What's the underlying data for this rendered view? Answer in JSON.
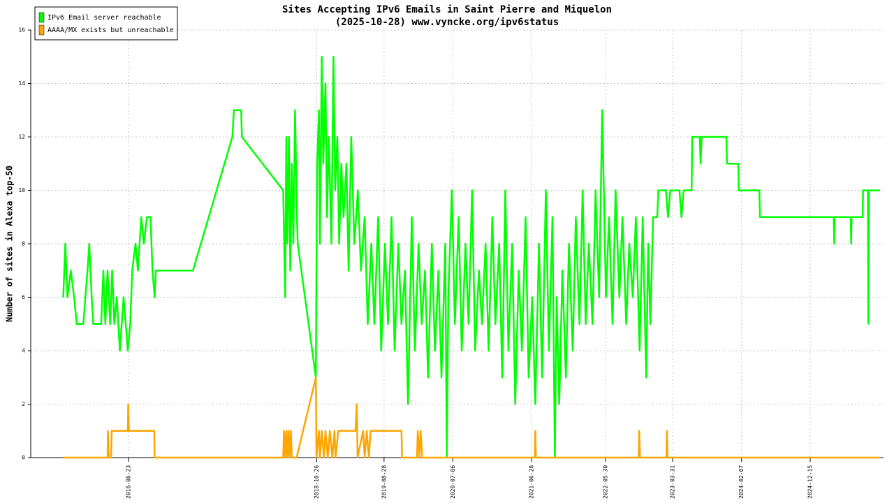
{
  "chart_data": {
    "type": "line",
    "title": "Sites Accepting IPv6 Emails in Saint Pierre and Miquelon",
    "subtitle": "(2025-10-28) www.vyncke.org/ipv6status",
    "y_label": "Number of sites in Alexa top-50",
    "xlim": [
      "2015-04-06",
      "2025-11-13"
    ],
    "xticks": [
      "2016-06-23",
      "2018-10-26",
      "2019-08-28",
      "2020-07-06",
      "2021-06-28",
      "2022-05-30",
      "2023-03-31",
      "2024-02-07",
      "2024-12-15"
    ],
    "ylim": [
      0,
      16
    ],
    "yticks": [
      0,
      2,
      4,
      6,
      8,
      10,
      12,
      14,
      16
    ],
    "grid": true,
    "legend": "top-left",
    "series": [
      {
        "name": "IPv6 Email server reachable",
        "color": "#00ff00",
        "x": [
          "2015-09-01",
          "2015-09-10",
          "2015-09-20",
          "2015-10-05",
          "2015-10-20",
          "2015-11-01",
          "2015-12-01",
          "2015-12-10",
          "2015-12-20",
          "2015-12-28",
          "2016-01-08",
          "2016-01-15",
          "2016-02-20",
          "2016-03-01",
          "2016-03-10",
          "2016-03-20",
          "2016-04-01",
          "2016-04-10",
          "2016-04-20",
          "2016-05-01",
          "2016-05-15",
          "2016-06-01",
          "2016-06-20",
          "2016-07-01",
          "2016-07-10",
          "2016-07-25",
          "2016-08-05",
          "2016-08-20",
          "2016-09-01",
          "2016-09-15",
          "2016-10-01",
          "2016-10-10",
          "2016-10-20",
          "2016-10-25",
          "2017-04-12",
          "2017-10-08",
          "2017-10-15",
          "2017-11-17",
          "2017-11-20",
          "2018-05-27",
          "2018-06-05",
          "2018-06-10",
          "2018-06-15",
          "2018-06-22",
          "2018-06-28",
          "2018-07-05",
          "2018-07-12",
          "2018-07-20",
          "2018-07-28",
          "2018-08-01",
          "2018-10-22",
          "2018-10-28",
          "2018-11-05",
          "2018-11-10",
          "2018-11-18",
          "2018-11-25",
          "2018-12-05",
          "2018-12-12",
          "2018-12-20",
          "2019-01-01",
          "2019-01-10",
          "2019-01-18",
          "2019-01-28",
          "2019-02-05",
          "2019-02-15",
          "2019-02-25",
          "2019-03-10",
          "2019-03-20",
          "2019-04-01",
          "2019-04-15",
          "2019-05-01",
          "2019-05-15",
          "2019-06-01",
          "2019-06-15",
          "2019-07-01",
          "2019-07-15",
          "2019-08-01",
          "2019-08-15",
          "2019-09-01",
          "2019-09-15",
          "2019-10-01",
          "2019-10-15",
          "2019-11-01",
          "2019-11-15",
          "2019-12-01",
          "2019-12-15",
          "2020-01-01",
          "2020-01-15",
          "2020-02-01",
          "2020-02-15",
          "2020-03-01",
          "2020-03-15",
          "2020-04-01",
          "2020-04-15",
          "2020-05-01",
          "2020-05-15",
          "2020-06-01",
          "2020-06-08",
          "2020-06-15",
          "2020-07-01",
          "2020-07-15",
          "2020-08-01",
          "2020-08-15",
          "2020-09-01",
          "2020-09-15",
          "2020-10-01",
          "2020-10-15",
          "2020-11-01",
          "2020-11-15",
          "2020-12-01",
          "2020-12-15",
          "2021-01-01",
          "2021-01-15",
          "2021-02-01",
          "2021-02-15",
          "2021-03-01",
          "2021-03-15",
          "2021-04-01",
          "2021-04-15",
          "2021-05-01",
          "2021-05-15",
          "2021-06-01",
          "2021-06-15",
          "2021-07-01",
          "2021-07-15",
          "2021-08-01",
          "2021-08-15",
          "2021-09-01",
          "2021-09-15",
          "2021-10-01",
          "2021-10-12",
          "2021-10-20",
          "2021-11-01",
          "2021-11-15",
          "2021-12-01",
          "2021-12-15",
          "2022-01-01",
          "2022-01-15",
          "2022-02-01",
          "2022-02-15",
          "2022-03-01",
          "2022-03-15",
          "2022-04-01",
          "2022-04-15",
          "2022-05-01",
          "2022-05-15",
          "2022-06-01",
          "2022-06-15",
          "2022-07-01",
          "2022-07-15",
          "2022-08-01",
          "2022-08-15",
          "2022-09-01",
          "2022-09-15",
          "2022-10-01",
          "2022-10-15",
          "2022-11-01",
          "2022-11-15",
          "2022-12-01",
          "2022-12-10",
          "2022-12-20",
          "2023-01-01",
          "2023-01-20",
          "2023-01-25",
          "2023-03-01",
          "2023-03-10",
          "2023-03-20",
          "2023-05-01",
          "2023-05-10",
          "2023-05-20",
          "2023-06-25",
          "2023-06-28",
          "2023-08-01",
          "2023-08-05",
          "2023-08-10",
          "2023-11-30",
          "2023-12-03",
          "2024-01-23",
          "2024-01-26",
          "2024-04-28",
          "2024-05-01",
          "2025-04-01",
          "2025-04-03",
          "2025-04-05",
          "2025-06-17",
          "2025-06-19",
          "2025-06-21",
          "2025-08-10",
          "2025-08-12",
          "2025-09-03",
          "2025-09-05",
          "2025-09-08",
          "2025-10-28"
        ],
        "values": [
          6,
          8,
          6,
          7,
          6,
          5,
          5,
          6,
          7,
          8,
          6,
          5,
          5,
          7,
          5,
          7,
          5,
          7,
          5,
          6,
          4,
          6,
          4,
          5,
          7,
          8,
          7,
          9,
          8,
          9,
          9,
          7,
          6,
          7,
          7,
          12,
          13,
          13,
          12,
          10,
          6,
          12,
          8,
          12,
          7,
          11,
          8,
          13,
          9,
          8,
          3,
          11,
          13,
          8,
          15,
          11,
          14,
          9,
          12,
          8,
          15,
          10,
          12,
          8,
          11,
          9,
          11,
          7,
          12,
          8,
          10,
          7,
          9,
          5,
          8,
          5,
          9,
          4,
          8,
          5,
          9,
          4,
          8,
          5,
          7,
          2,
          9,
          4,
          8,
          5,
          7,
          3,
          8,
          4,
          7,
          3,
          8,
          0,
          6,
          10,
          5,
          9,
          4,
          8,
          5,
          10,
          4,
          7,
          5,
          8,
          4,
          9,
          5,
          8,
          3,
          10,
          4,
          8,
          2,
          7,
          4,
          9,
          3,
          6,
          2,
          8,
          3,
          10,
          4,
          9,
          0,
          6,
          2,
          7,
          3,
          8,
          4,
          9,
          5,
          10,
          5,
          8,
          5,
          10,
          6,
          13,
          6,
          9,
          5,
          10,
          6,
          9,
          5,
          8,
          6,
          9,
          4,
          9,
          3,
          8,
          5,
          9,
          9,
          10,
          10,
          9,
          10,
          10,
          9,
          10,
          10,
          12,
          12,
          11,
          12,
          12,
          11,
          11,
          10,
          10,
          9,
          9,
          8,
          9,
          9,
          8,
          9,
          9,
          10,
          10,
          5,
          10,
          10
        ]
      },
      {
        "name": "AAAA/MX exists but unreachable",
        "color": "#ffa500",
        "x": [
          "2015-09-01",
          "2016-03-20",
          "2016-03-22",
          "2016-03-25",
          "2016-04-05",
          "2016-04-08",
          "2016-06-20",
          "2016-06-22",
          "2016-06-25",
          "2016-10-18",
          "2016-10-20",
          "2018-05-27",
          "2018-05-30",
          "2018-06-05",
          "2018-06-10",
          "2018-06-15",
          "2018-06-20",
          "2018-06-25",
          "2018-07-01",
          "2018-07-05",
          "2018-07-27",
          "2018-10-22",
          "2018-10-25",
          "2018-11-05",
          "2018-11-10",
          "2018-11-18",
          "2018-11-28",
          "2018-12-05",
          "2018-12-15",
          "2018-12-25",
          "2019-01-05",
          "2019-01-15",
          "2019-01-20",
          "2019-02-01",
          "2019-04-20",
          "2019-04-26",
          "2019-04-30",
          "2019-05-25",
          "2019-06-01",
          "2019-06-10",
          "2019-06-20",
          "2019-06-28",
          "2019-11-15",
          "2019-11-18",
          "2020-01-25",
          "2020-01-28",
          "2020-02-05",
          "2020-02-10",
          "2020-02-18",
          "2021-07-13",
          "2021-07-15",
          "2021-07-18",
          "2022-10-28",
          "2022-10-30",
          "2022-11-03",
          "2023-03-03",
          "2023-03-05",
          "2023-03-08",
          "2025-10-28"
        ],
        "values": [
          0,
          0,
          1,
          0,
          0,
          1,
          1,
          2,
          1,
          1,
          0,
          0,
          1,
          0,
          1,
          0,
          1,
          0,
          1,
          0,
          0,
          3,
          0,
          1,
          0,
          1,
          0,
          1,
          0,
          1,
          0,
          1,
          0,
          1,
          1,
          2,
          0,
          1,
          0,
          1,
          0,
          1,
          1,
          0,
          0,
          1,
          0,
          1,
          0,
          0,
          1,
          0,
          0,
          1,
          0,
          0,
          1,
          0,
          0
        ]
      }
    ]
  }
}
